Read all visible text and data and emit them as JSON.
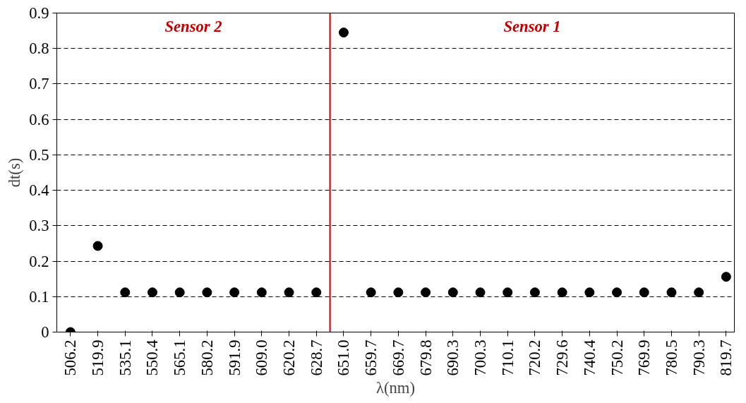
{
  "chart_data": {
    "type": "scatter",
    "xlabel": "λ(nm)",
    "ylabel": "dt(s)",
    "categories": [
      "506.2",
      "519.9",
      "535.1",
      "550.4",
      "565.1",
      "580.2",
      "591.9",
      "609.0",
      "620.2",
      "628.7",
      "651.0",
      "659.7",
      "669.7",
      "679.8",
      "690.3",
      "700.3",
      "710.1",
      "720.2",
      "729.6",
      "740.4",
      "750.2",
      "769.9",
      "780.5",
      "790.3",
      "819.7"
    ],
    "series": [
      {
        "color": "#000000",
        "values": [
          0,
          0.243,
          0.112,
          0.112,
          0.112,
          0.112,
          0.112,
          0.112,
          0.112,
          0.112,
          0.845,
          0.112,
          0.112,
          0.112,
          0.112,
          0.112,
          0.112,
          0.112,
          0.112,
          0.112,
          0.112,
          0.112,
          0.112,
          0.112,
          0.156
        ]
      }
    ],
    "ylim": [
      0,
      0.9
    ],
    "yticks": [
      0,
      0.1,
      0.2,
      0.3,
      0.4,
      0.5,
      0.6,
      0.7,
      0.8,
      0.9
    ],
    "grid": "y",
    "marker": "circle",
    "ref_lines": [
      {
        "axis": "x",
        "value": "628.7",
        "color": "#c00000"
      }
    ],
    "annotations": [
      "Sensor 2",
      "Sensor 1"
    ]
  }
}
